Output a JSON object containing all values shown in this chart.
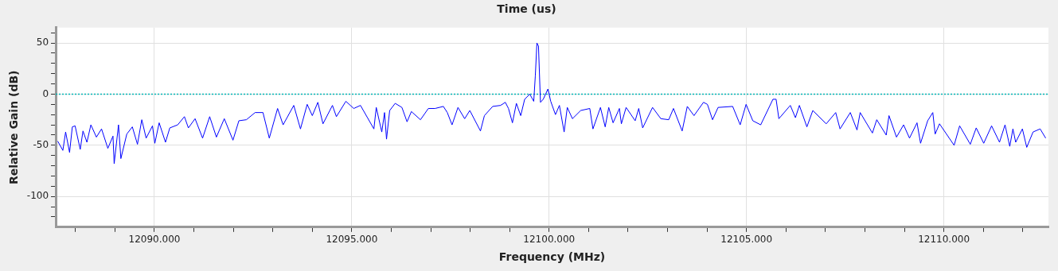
{
  "chart_data": {
    "type": "line",
    "title": "Time (us)",
    "xlabel": "Frequency (MHz)",
    "ylabel": "Relative Gain (dB)",
    "xlim": [
      12087.5,
      12112.65
    ],
    "ylim": [
      -130,
      65
    ],
    "xticks": [
      {
        "value": 12088,
        "label": null
      },
      {
        "value": 12089,
        "label": null
      },
      {
        "value": 12090,
        "label": "12090.000"
      },
      {
        "value": 12091,
        "label": null
      },
      {
        "value": 12092,
        "label": null
      },
      {
        "value": 12093,
        "label": null
      },
      {
        "value": 12094,
        "label": null
      },
      {
        "value": 12095,
        "label": "12095.000"
      },
      {
        "value": 12096,
        "label": null
      },
      {
        "value": 12097,
        "label": null
      },
      {
        "value": 12098,
        "label": null
      },
      {
        "value": 12099,
        "label": null
      },
      {
        "value": 12100,
        "label": "12100.000"
      },
      {
        "value": 12101,
        "label": null
      },
      {
        "value": 12102,
        "label": null
      },
      {
        "value": 12103,
        "label": null
      },
      {
        "value": 12104,
        "label": null
      },
      {
        "value": 12105,
        "label": "12105.000"
      },
      {
        "value": 12106,
        "label": null
      },
      {
        "value": 12107,
        "label": null
      },
      {
        "value": 12108,
        "label": null
      },
      {
        "value": 12109,
        "label": null
      },
      {
        "value": 12110,
        "label": "12110.000"
      },
      {
        "value": 12111,
        "label": null
      },
      {
        "value": 12112,
        "label": null
      }
    ],
    "yticks": [
      {
        "value": -120,
        "label": null
      },
      {
        "value": -110,
        "label": null
      },
      -100,
      {
        "value": -90,
        "label": null
      },
      {
        "value": -80,
        "label": null
      },
      {
        "value": -70,
        "label": null
      },
      {
        "value": -60,
        "label": null
      },
      -50,
      {
        "value": -40,
        "label": null
      },
      {
        "value": -30,
        "label": null
      },
      {
        "value": -20,
        "label": null
      },
      {
        "value": -10,
        "label": null
      },
      0,
      {
        "value": 10,
        "label": null
      },
      {
        "value": 20,
        "label": null
      },
      {
        "value": 30,
        "label": null
      },
      {
        "value": 40,
        "label": null
      },
      50,
      {
        "value": 60,
        "label": null
      }
    ],
    "grid": true,
    "legend": false,
    "marker": "none",
    "line_style": "solid",
    "ref_lines": [
      {
        "axis": "y",
        "value": 0,
        "color": "#00b4b4",
        "line_style": "dotted"
      }
    ],
    "series": [
      {
        "color": "#0000ff",
        "x": [
          12087.55,
          12087.68,
          12087.75,
          12087.85,
          12087.92,
          12087.99,
          12088.12,
          12088.19,
          12088.29,
          12088.39,
          12088.53,
          12088.66,
          12088.82,
          12088.95,
          12088.98,
          12089.09,
          12089.15,
          12089.3,
          12089.44,
          12089.57,
          12089.68,
          12089.79,
          12089.95,
          12090.01,
          12090.12,
          12090.28,
          12090.39,
          12090.59,
          12090.76,
          12090.86,
          12091.03,
          12091.22,
          12091.4,
          12091.57,
          12091.77,
          12091.99,
          12092.14,
          12092.33,
          12092.55,
          12092.75,
          12092.91,
          12093.12,
          12093.26,
          12093.53,
          12093.7,
          12093.87,
          12094.0,
          12094.14,
          12094.27,
          12094.51,
          12094.61,
          12094.85,
          12095.05,
          12095.22,
          12095.56,
          12095.62,
          12095.76,
          12095.83,
          12095.88,
          12095.96,
          12096.1,
          12096.27,
          12096.4,
          12096.51,
          12096.74,
          12096.94,
          12097.11,
          12097.32,
          12097.42,
          12097.54,
          12097.69,
          12097.86,
          12097.99,
          12098.26,
          12098.36,
          12098.57,
          12098.77,
          12098.89,
          12098.97,
          12099.07,
          12099.17,
          12099.28,
          12099.38,
          12099.51,
          12099.61,
          12099.65,
          12099.69,
          12099.73,
          12099.78,
          12099.85,
          12099.97,
          12100.04,
          12100.16,
          12100.26,
          12100.38,
          12100.46,
          12100.59,
          12100.8,
          12101.03,
          12101.11,
          12101.3,
          12101.42,
          12101.51,
          12101.62,
          12101.78,
          12101.83,
          12101.95,
          12102.18,
          12102.27,
          12102.37,
          12102.62,
          12102.83,
          12103.03,
          12103.15,
          12103.37,
          12103.5,
          12103.67,
          12103.91,
          12104.01,
          12104.14,
          12104.28,
          12104.65,
          12104.84,
          12104.99,
          12105.16,
          12105.36,
          12105.67,
          12105.75,
          12105.82,
          12106.11,
          12106.24,
          12106.34,
          12106.53,
          12106.68,
          12107.02,
          12107.26,
          12107.37,
          12107.63,
          12107.8,
          12107.88,
          12108.19,
          12108.3,
          12108.54,
          12108.61,
          12108.8,
          12108.98,
          12109.13,
          12109.32,
          12109.41,
          12109.59,
          12109.72,
          12109.78,
          12109.89,
          12110.26,
          12110.4,
          12110.67,
          12110.82,
          12111.01,
          12111.21,
          12111.41,
          12111.55,
          12111.67,
          12111.75,
          12111.82,
          12111.99,
          12112.1,
          12112.26,
          12112.44,
          12112.58
        ],
        "values": [
          -46,
          -55,
          -37,
          -57,
          -32,
          -31,
          -54,
          -36,
          -47,
          -30,
          -42,
          -34,
          -53,
          -41,
          -68,
          -30,
          -63,
          -39,
          -32,
          -49,
          -25,
          -43,
          -31,
          -48,
          -28,
          -47,
          -33,
          -30,
          -22,
          -33,
          -24,
          -43,
          -22,
          -42,
          -24,
          -45,
          -26,
          -25,
          -18,
          -18,
          -43,
          -14,
          -30,
          -11,
          -34,
          -10,
          -21,
          -8,
          -29,
          -11,
          -22,
          -7,
          -14,
          -11,
          -34,
          -13,
          -37,
          -18,
          -44,
          -16,
          -9,
          -13,
          -27,
          -17,
          -25,
          -14,
          -14,
          -12,
          -18,
          -30,
          -13,
          -24,
          -16,
          -36,
          -21,
          -12,
          -11,
          -8,
          -14,
          -28,
          -9,
          -21,
          -5,
          0,
          -7,
          18,
          50,
          47,
          -8,
          -5,
          5,
          -7,
          -20,
          -11,
          -37,
          -13,
          -24,
          -16,
          -14,
          -34,
          -13,
          -32,
          -13,
          -28,
          -14,
          -29,
          -13,
          -26,
          -14,
          -33,
          -13,
          -24,
          -25,
          -14,
          -36,
          -12,
          -21,
          -8,
          -10,
          -25,
          -13,
          -12,
          -30,
          -10,
          -26,
          -30,
          -5,
          -5,
          -24,
          -11,
          -23,
          -11,
          -32,
          -16,
          -29,
          -18,
          -34,
          -18,
          -35,
          -18,
          -38,
          -25,
          -40,
          -21,
          -42,
          -30,
          -43,
          -28,
          -48,
          -26,
          -18,
          -39,
          -29,
          -50,
          -31,
          -49,
          -33,
          -48,
          -31,
          -47,
          -30,
          -51,
          -34,
          -47,
          -34,
          -52,
          -37,
          -34,
          -43
        ]
      }
    ]
  }
}
